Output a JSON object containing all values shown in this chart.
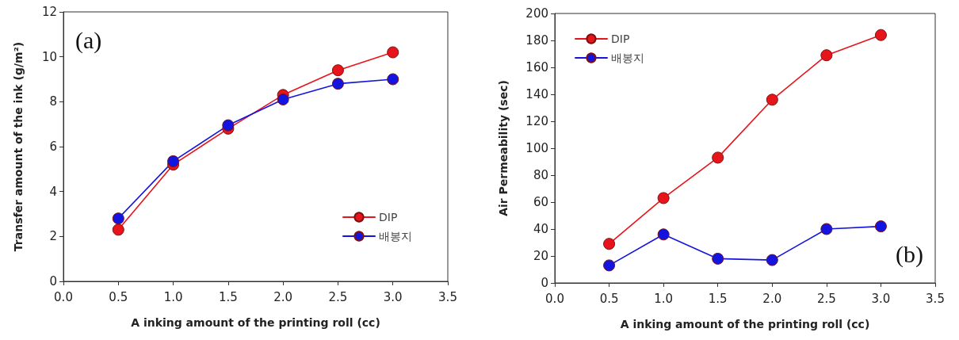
{
  "chart_data": [
    {
      "type": "line",
      "xlabel": "A inking amount of the printing roll (cc)",
      "ylabel": "Transfer amount of the ink (g/m²)",
      "annotations": [
        "(a)"
      ],
      "x": [
        0.5,
        1.0,
        1.5,
        2.0,
        2.5,
        3.0
      ],
      "series": [
        {
          "name": "DIP",
          "color": "#e8141b",
          "values": [
            2.3,
            5.2,
            6.8,
            8.3,
            9.4,
            10.2
          ]
        },
        {
          "name": "배봉지",
          "color": "#1414e0",
          "values": [
            2.8,
            5.35,
            6.95,
            8.1,
            8.8,
            9.0
          ]
        }
      ],
      "xlim": [
        0,
        3.5
      ],
      "xticks": [
        {
          "value": 0,
          "label": "0.0"
        },
        {
          "value": 0.5,
          "label": "0.5"
        },
        {
          "value": 1,
          "label": "1.0"
        },
        {
          "value": 1.5,
          "label": "1.5"
        },
        {
          "value": 2,
          "label": "2.0"
        },
        {
          "value": 2.5,
          "label": "2.5"
        },
        {
          "value": 3,
          "label": "3.0"
        },
        {
          "value": 3.5,
          "label": "3.5"
        }
      ],
      "ylim": [
        0,
        12
      ],
      "yticks": [
        0,
        2,
        4,
        6,
        8,
        10,
        12
      ],
      "grid": false,
      "legend": "bottom right",
      "marker": "circle",
      "line_style": "solid"
    },
    {
      "type": "line",
      "xlabel": "A inking amount of the printing roll (cc)",
      "ylabel": "Air Permeability (sec)",
      "annotations": [
        "(b)"
      ],
      "x": [
        0.5,
        1.0,
        1.5,
        2.0,
        2.5,
        3.0
      ],
      "series": [
        {
          "name": "DIP",
          "color": "#e8141b",
          "values": [
            29,
            63,
            93,
            136,
            169,
            184
          ]
        },
        {
          "name": "배봉지",
          "color": "#1414e0",
          "values": [
            13,
            36,
            18,
            17,
            40,
            42
          ]
        }
      ],
      "xlim": [
        0,
        3.5
      ],
      "xticks": [
        {
          "value": 0,
          "label": "0.0"
        },
        {
          "value": 0.5,
          "label": "0.5"
        },
        {
          "value": 1,
          "label": "1.0"
        },
        {
          "value": 1.5,
          "label": "1.5"
        },
        {
          "value": 2,
          "label": "2.0"
        },
        {
          "value": 2.5,
          "label": "2.5"
        },
        {
          "value": 3,
          "label": "3.0"
        },
        {
          "value": 3.5,
          "label": "3.5"
        }
      ],
      "ylim": [
        0,
        200
      ],
      "yticks": [
        0,
        20,
        40,
        60,
        80,
        100,
        120,
        140,
        160,
        180,
        200
      ],
      "grid": false,
      "legend": "top left",
      "marker": "circle",
      "line_style": "solid"
    }
  ]
}
